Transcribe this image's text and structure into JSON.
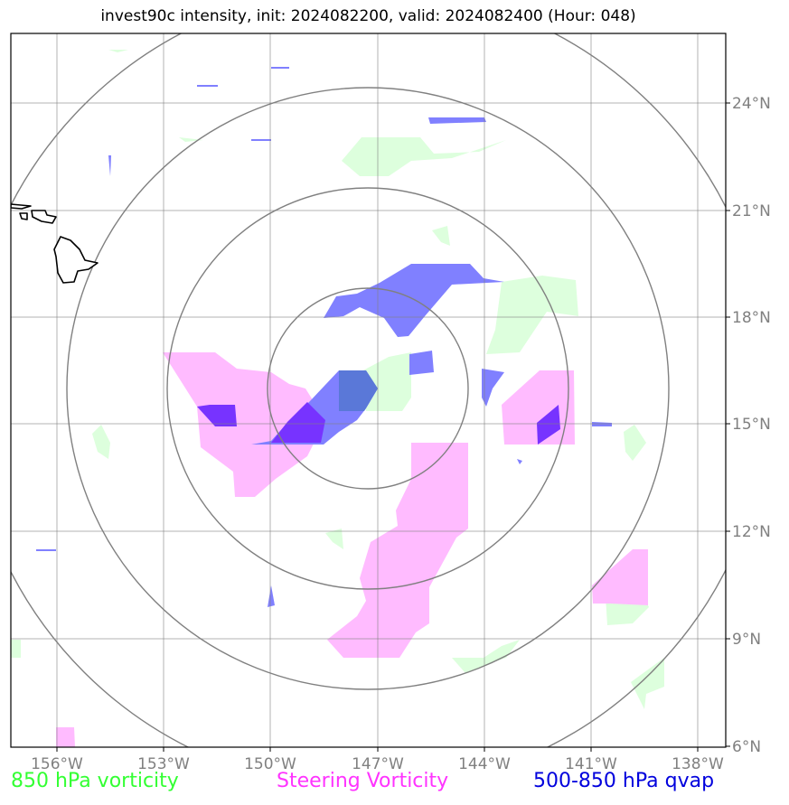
{
  "title": "invest90c intensity, init: 2024082200, valid: 2024082400 (Hour: 048)",
  "lon_ticks": [
    "156°W",
    "153°W",
    "150°W",
    "147°W",
    "144°W",
    "141°W",
    "138°W"
  ],
  "lat_ticks": [
    "24°N",
    "21°N",
    "18°N",
    "15°N",
    "12°N",
    "9°N",
    "6°N"
  ],
  "legend": {
    "vort850": "850 hPa vorticity",
    "steering": "Steering Vorticity",
    "qvap": "500-850 hPa qvap"
  },
  "colors": {
    "vort850": "#33ff33",
    "steering": "#ff33ff",
    "qvap": "#0000dd",
    "grid": "#808080"
  }
}
